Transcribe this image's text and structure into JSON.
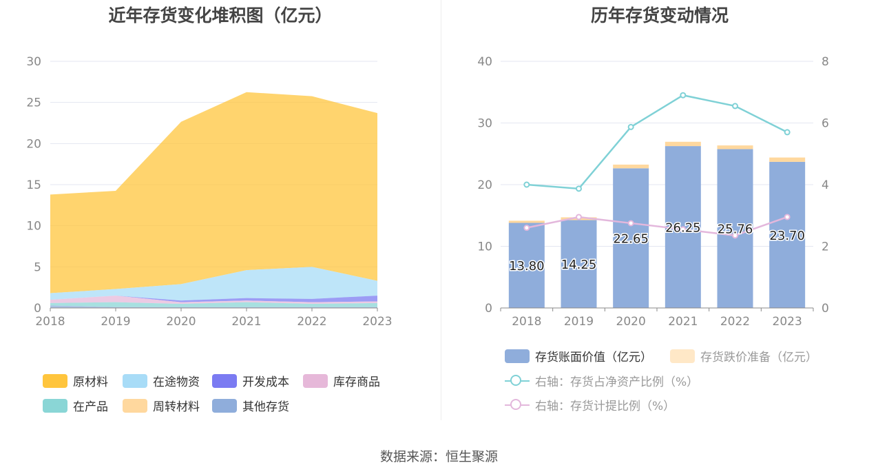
{
  "left": {
    "title": "近年存货变化堆积图（亿元）",
    "legend": [
      {
        "label": "原材料",
        "color": "#FFC53D"
      },
      {
        "label": "在途物资",
        "color": "#A8DCF7"
      },
      {
        "label": "开发成本",
        "color": "#7B7BF2"
      },
      {
        "label": "库存商品",
        "color": "#E6B8D9"
      },
      {
        "label": "在产品",
        "color": "#8AD6D6"
      },
      {
        "label": "周转材料",
        "color": "#FFD89E"
      },
      {
        "label": "其他存货",
        "color": "#8FADDB"
      }
    ]
  },
  "right": {
    "title": "历年存货变动情况",
    "legend": [
      {
        "label": "存货账面价值（亿元）",
        "color": "#8FADDB",
        "kind": "bar"
      },
      {
        "label": "存货跌价准备（亿元）",
        "color": "#FFE8C7",
        "kind": "bar"
      },
      {
        "label": "右轴：存货占净资产比例（%）",
        "color": "#7FD1D6",
        "kind": "line"
      },
      {
        "label": "右轴：存货计提比例（%）",
        "color": "#E3B7DC",
        "kind": "line"
      }
    ]
  },
  "source": "数据来源：恒生聚源",
  "chart_data": [
    {
      "type": "area",
      "stacked": true,
      "title": "近年存货变化堆积图（亿元）",
      "x": [
        "2018",
        "2019",
        "2020",
        "2021",
        "2022",
        "2023"
      ],
      "ylim": [
        0,
        30
      ],
      "yticks": [
        0,
        5,
        10,
        15,
        20,
        25,
        30
      ],
      "grid": true,
      "legend_position": "bottom",
      "series": [
        {
          "name": "其他存货",
          "color": "#8FADDB",
          "values": [
            0.3,
            0.1,
            0.1,
            0.1,
            0.1,
            0.1
          ]
        },
        {
          "name": "周转材料",
          "color": "#FFD89E",
          "values": [
            0.0,
            0.0,
            0.0,
            0.0,
            0.0,
            0.0
          ]
        },
        {
          "name": "在产品",
          "color": "#8AD6D6",
          "values": [
            0.3,
            0.6,
            0.4,
            0.6,
            0.4,
            0.5
          ]
        },
        {
          "name": "库存商品",
          "color": "#E6B8D9",
          "values": [
            0.4,
            0.8,
            0.2,
            0.2,
            0.2,
            0.2
          ]
        },
        {
          "name": "开发成本",
          "color": "#7B7BF2",
          "values": [
            0.0,
            0.0,
            0.2,
            0.3,
            0.4,
            0.7
          ]
        },
        {
          "name": "在途物资",
          "color": "#A8DCF7",
          "values": [
            0.8,
            0.8,
            2.0,
            3.4,
            3.9,
            1.8
          ]
        },
        {
          "name": "原材料",
          "color": "#FFC53D",
          "values": [
            12.0,
            11.95,
            19.75,
            21.65,
            20.76,
            20.4
          ]
        }
      ]
    },
    {
      "type": "bar",
      "stacked": true,
      "title": "历年存货变动情况",
      "categories": [
        "2018",
        "2019",
        "2020",
        "2021",
        "2022",
        "2023"
      ],
      "ylim": [
        0,
        40
      ],
      "yticks": [
        0,
        10,
        20,
        30,
        40
      ],
      "y2lim": [
        0,
        8
      ],
      "y2ticks": [
        0,
        2,
        4,
        6,
        8
      ],
      "grid": true,
      "legend_position": "bottom",
      "series": [
        {
          "name": "存货账面价值（亿元）",
          "color": "#8FADDB",
          "values": [
            13.8,
            14.25,
            22.65,
            26.25,
            25.76,
            23.7
          ],
          "labels": [
            "13.80",
            "14.25",
            "22.65",
            "26.25",
            "25.76",
            "23.70"
          ]
        },
        {
          "name": "存货跌价准备（亿元）",
          "color": "#FFD89E",
          "values": [
            0.35,
            0.45,
            0.6,
            0.7,
            0.6,
            0.7
          ]
        }
      ],
      "lines": [
        {
          "name": "右轴：存货占净资产比例（%）",
          "color": "#7FD1D6",
          "axis": "right",
          "values": [
            4.0,
            3.87,
            5.87,
            6.9,
            6.55,
            5.7
          ]
        },
        {
          "name": "右轴：存货计提比例（%）",
          "color": "#E3B7DC",
          "axis": "right",
          "values": [
            2.6,
            2.95,
            2.75,
            2.55,
            2.35,
            2.95
          ]
        }
      ]
    }
  ]
}
